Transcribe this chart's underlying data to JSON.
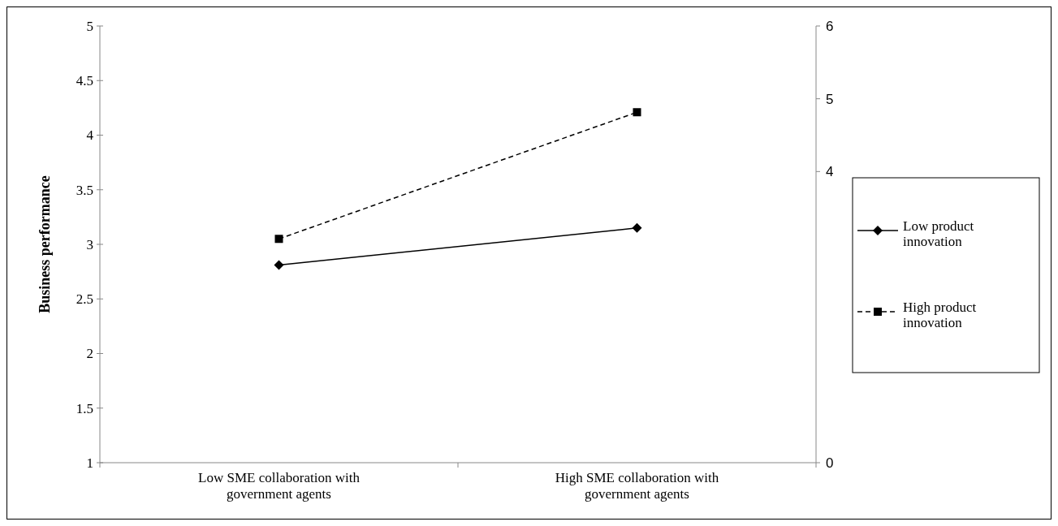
{
  "chart_data": {
    "type": "line",
    "ylabel": "Business performance",
    "categories": [
      "Low SME collaboration with government agents",
      "High SME collaboration with government agents"
    ],
    "series": [
      {
        "name": "Low product innovation",
        "color": "#000000",
        "values": [
          2.81,
          3.15
        ],
        "marker": "diamond",
        "line_style": "solid"
      },
      {
        "name": "High product innovation",
        "color": "#000000",
        "values": [
          3.05,
          4.21
        ],
        "marker": "square",
        "line_style": "dashed"
      }
    ],
    "ylim": [
      1,
      5
    ],
    "yticks": [
      1,
      1.5,
      2,
      2.5,
      3,
      3.5,
      4,
      4.5,
      5
    ],
    "y2lim": [
      0,
      6
    ],
    "y2ticks": [
      0,
      4,
      5,
      6
    ],
    "grid": false,
    "legend": "right"
  }
}
